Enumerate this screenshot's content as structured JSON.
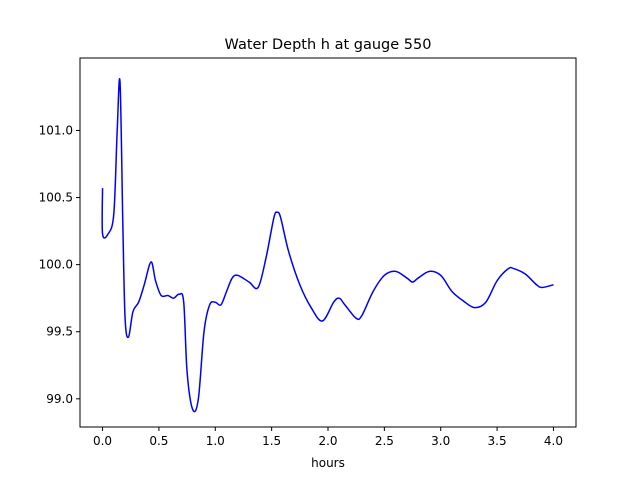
{
  "chart_data": {
    "type": "line",
    "title": "Water Depth h at gauge 550",
    "xlabel": "hours",
    "ylabel": "",
    "xlim": [
      -0.2,
      4.2
    ],
    "ylim": [
      98.79,
      101.54
    ],
    "xticks": [
      0.0,
      0.5,
      1.0,
      1.5,
      2.0,
      2.5,
      3.0,
      3.5,
      4.0
    ],
    "xtick_labels": [
      "0.0",
      "0.5",
      "1.0",
      "1.5",
      "2.0",
      "2.5",
      "3.0",
      "3.5",
      "4.0"
    ],
    "yticks": [
      99.0,
      99.5,
      100.0,
      100.5,
      101.0
    ],
    "ytick_labels": [
      "99.0",
      "99.5",
      "100.0",
      "100.5",
      "101.0"
    ],
    "grid": false,
    "series": [
      {
        "color": "#0000ff",
        "x": [
          0.0,
          0.0,
          0.05,
          0.1,
          0.13,
          0.155,
          0.18,
          0.2,
          0.23,
          0.27,
          0.32,
          0.37,
          0.43,
          0.47,
          0.52,
          0.58,
          0.63,
          0.68,
          0.72,
          0.75,
          0.8,
          0.85,
          0.9,
          0.95,
          1.0,
          1.05,
          1.1,
          1.15,
          1.2,
          1.3,
          1.38,
          1.45,
          1.52,
          1.55,
          1.58,
          1.65,
          1.75,
          1.85,
          1.95,
          2.05,
          2.1,
          2.15,
          2.25,
          2.3,
          2.4,
          2.5,
          2.6,
          2.7,
          2.75,
          2.8,
          2.9,
          3.0,
          3.1,
          3.2,
          3.3,
          3.4,
          3.5,
          3.6,
          3.65,
          3.75,
          3.85,
          3.9,
          4.0
        ],
        "y": [
          100.57,
          100.23,
          100.23,
          100.38,
          101.0,
          101.36,
          100.3,
          99.6,
          99.46,
          99.65,
          99.72,
          99.85,
          100.02,
          99.88,
          99.77,
          99.77,
          99.75,
          99.78,
          99.72,
          99.2,
          98.92,
          99.0,
          99.5,
          99.7,
          99.72,
          99.7,
          99.8,
          99.9,
          99.92,
          99.87,
          99.83,
          100.05,
          100.35,
          100.39,
          100.35,
          100.1,
          99.85,
          99.68,
          99.58,
          99.72,
          99.75,
          99.7,
          99.6,
          99.62,
          99.8,
          99.92,
          99.95,
          99.9,
          99.87,
          99.9,
          99.95,
          99.92,
          99.8,
          99.73,
          99.68,
          99.72,
          99.88,
          99.97,
          99.97,
          99.93,
          99.85,
          99.83,
          99.85
        ]
      }
    ]
  }
}
